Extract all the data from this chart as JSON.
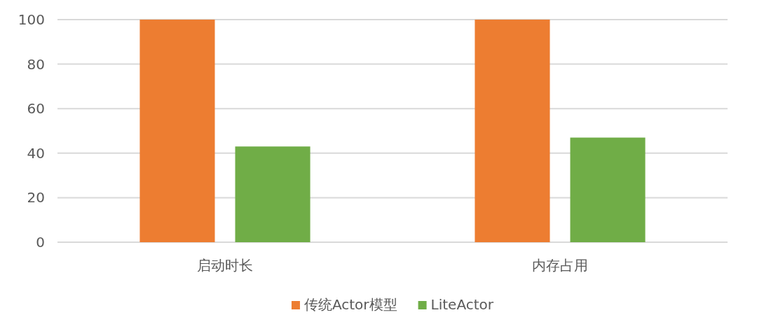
{
  "chart_data": {
    "type": "bar",
    "categories": [
      "启动时长",
      "内存占用"
    ],
    "series": [
      {
        "name": "传统Actor模型",
        "color": "#ed7d31",
        "values": [
          100,
          100
        ]
      },
      {
        "name": "LiteActor",
        "color": "#70ad47",
        "values": [
          43,
          47
        ]
      }
    ],
    "ylim": [
      0,
      100
    ],
    "yticks": [
      0,
      20,
      40,
      60,
      80,
      100
    ],
    "grid": "y",
    "legend": "bottom"
  }
}
